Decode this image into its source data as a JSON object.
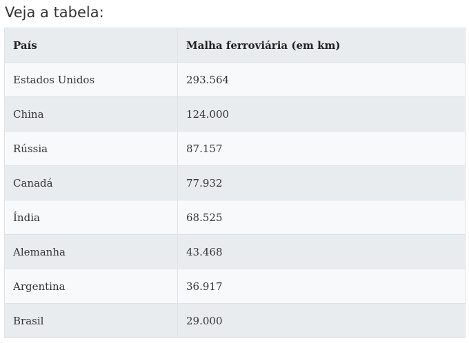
{
  "intro_text": "Veja a tabela:",
  "table": {
    "headers": [
      "País",
      "Malha ferroviária (em km)"
    ],
    "rows": [
      [
        "Estados Unidos",
        "293.564"
      ],
      [
        "China",
        "124.000"
      ],
      [
        "Rússia",
        "87.157"
      ],
      [
        "Canadá",
        "77.932"
      ],
      [
        "Índia",
        "68.525"
      ],
      [
        "Alemanha",
        "43.468"
      ],
      [
        "Argentina",
        "36.917"
      ],
      [
        "Brasil",
        "29.000"
      ]
    ]
  },
  "colors": {
    "header_bg": "#e9ecef",
    "row_light": "#f8f9fa",
    "row_dark": "#e9ecef",
    "border": "#dee2e6",
    "text": "#333333"
  }
}
